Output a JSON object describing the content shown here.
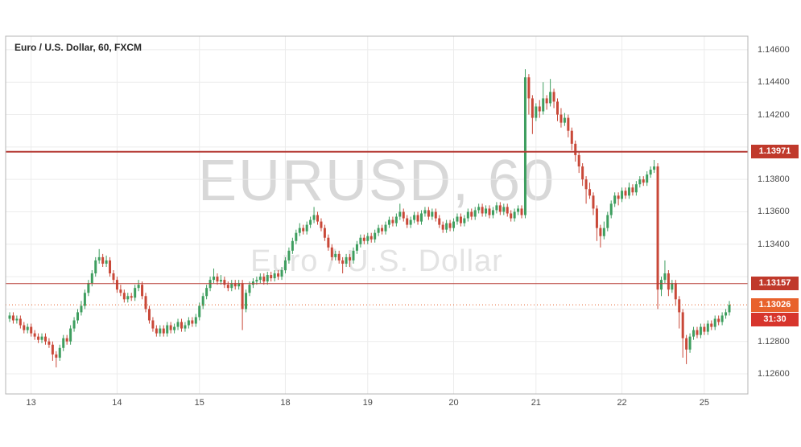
{
  "header": {
    "title": "Euro / U.S. Dollar, 60, FXCM"
  },
  "watermark": {
    "symbol_text": "EURUSD, 60",
    "name_text": "Euro / U.S. Dollar"
  },
  "colors": {
    "candle_up": "#3e9e5f",
    "candle_down": "#c94838",
    "grid": "#ececec",
    "plot_border": "#b5b5b5",
    "axis_text": "#4a4a4a",
    "level_line": "#b53a34",
    "level_label_bg": "#c0392b",
    "last_price": "#e8622c",
    "countdown_bg": "#d7352c"
  },
  "chart_data": {
    "type": "candlestick",
    "symbol": "EURUSD",
    "description": "Euro / U.S. Dollar",
    "interval": "60",
    "exchange": "FXCM",
    "x_axis": {
      "ticks": [
        {
          "label": "13",
          "index": 6
        },
        {
          "label": "14",
          "index": 30
        },
        {
          "label": "15",
          "index": 53
        },
        {
          "label": "18",
          "index": 77
        },
        {
          "label": "19",
          "index": 100
        },
        {
          "label": "20",
          "index": 124
        },
        {
          "label": "21",
          "index": 147
        },
        {
          "label": "22",
          "index": 171
        },
        {
          "label": "25",
          "index": 194
        }
      ]
    },
    "y_axis": {
      "range": [
        1.12476,
        1.14684
      ],
      "grid_prices": [
        1.146,
        1.144,
        1.142,
        1.14,
        1.138,
        1.136,
        1.134,
        1.132,
        1.13,
        1.128,
        1.126
      ],
      "visible_ticks": [
        "1.14600",
        "1.14400",
        "1.14200",
        "1.13800",
        "1.13600",
        "1.13400",
        "1.12800",
        "1.12600"
      ]
    },
    "levels": [
      {
        "price": 1.13971,
        "label": "1.13971"
      },
      {
        "price": 1.13157,
        "label": "1.13157"
      }
    ],
    "last_price": {
      "price": 1.13026,
      "label": "1.13026",
      "countdown": "31:30"
    },
    "ohlc_order": [
      "open",
      "high",
      "low",
      "close"
    ],
    "candles": [
      [
        1.1294,
        1.1298,
        1.1292,
        1.1296
      ],
      [
        1.1296,
        1.1298,
        1.1291,
        1.1293
      ],
      [
        1.1293,
        1.1296,
        1.1291,
        1.1294
      ],
      [
        1.1294,
        1.1296,
        1.1288,
        1.129
      ],
      [
        1.129,
        1.1292,
        1.1285,
        1.1287
      ],
      [
        1.1287,
        1.1291,
        1.1285,
        1.1289
      ],
      [
        1.1289,
        1.1291,
        1.1283,
        1.1285
      ],
      [
        1.1285,
        1.1287,
        1.1281,
        1.1283
      ],
      [
        1.1283,
        1.1285,
        1.1279,
        1.1281
      ],
      [
        1.1281,
        1.1285,
        1.1279,
        1.1283
      ],
      [
        1.1283,
        1.1285,
        1.1278,
        1.128
      ],
      [
        1.128,
        1.1282,
        1.1276,
        1.1278
      ],
      [
        1.1278,
        1.128,
        1.1268,
        1.1272
      ],
      [
        1.1272,
        1.1274,
        1.1264,
        1.127
      ],
      [
        1.127,
        1.1278,
        1.1268,
        1.1276
      ],
      [
        1.1276,
        1.1284,
        1.1274,
        1.1282
      ],
      [
        1.1282,
        1.1284,
        1.1278,
        1.128
      ],
      [
        1.128,
        1.129,
        1.1278,
        1.1288
      ],
      [
        1.1288,
        1.1295,
        1.1286,
        1.1293
      ],
      [
        1.1293,
        1.13,
        1.1291,
        1.1298
      ],
      [
        1.1298,
        1.1305,
        1.1296,
        1.1302
      ],
      [
        1.1302,
        1.1312,
        1.13,
        1.131
      ],
      [
        1.131,
        1.1318,
        1.1308,
        1.1316
      ],
      [
        1.1316,
        1.1324,
        1.1314,
        1.1322
      ],
      [
        1.1322,
        1.1332,
        1.132,
        1.133
      ],
      [
        1.133,
        1.1337,
        1.1328,
        1.1332
      ],
      [
        1.1332,
        1.1334,
        1.1326,
        1.1328
      ],
      [
        1.1328,
        1.1333,
        1.1326,
        1.133
      ],
      [
        1.133,
        1.1332,
        1.132,
        1.1322
      ],
      [
        1.1322,
        1.1324,
        1.1316,
        1.1318
      ],
      [
        1.1318,
        1.132,
        1.131,
        1.1312
      ],
      [
        1.1312,
        1.1315,
        1.1308,
        1.131
      ],
      [
        1.131,
        1.1312,
        1.1304,
        1.1306
      ],
      [
        1.1306,
        1.131,
        1.1304,
        1.1308
      ],
      [
        1.1308,
        1.131,
        1.1305,
        1.1307
      ],
      [
        1.1307,
        1.1315,
        1.1305,
        1.1313
      ],
      [
        1.1313,
        1.1318,
        1.1311,
        1.1315
      ],
      [
        1.1315,
        1.1317,
        1.1306,
        1.1308
      ],
      [
        1.1308,
        1.131,
        1.1298,
        1.13
      ],
      [
        1.13,
        1.1302,
        1.1291,
        1.1293
      ],
      [
        1.1293,
        1.1295,
        1.1286,
        1.1288
      ],
      [
        1.1288,
        1.129,
        1.1283,
        1.1285
      ],
      [
        1.1285,
        1.129,
        1.1283,
        1.1288
      ],
      [
        1.1288,
        1.129,
        1.1283,
        1.1285
      ],
      [
        1.1285,
        1.1292,
        1.1283,
        1.129
      ],
      [
        1.129,
        1.1292,
        1.1285,
        1.1287
      ],
      [
        1.1287,
        1.1291,
        1.1285,
        1.1289
      ],
      [
        1.1289,
        1.1294,
        1.1287,
        1.1292
      ],
      [
        1.1292,
        1.1294,
        1.1286,
        1.1288
      ],
      [
        1.1288,
        1.1292,
        1.1286,
        1.129
      ],
      [
        1.129,
        1.1295,
        1.1288,
        1.1293
      ],
      [
        1.1293,
        1.1295,
        1.1289,
        1.1291
      ],
      [
        1.1291,
        1.1297,
        1.1289,
        1.1295
      ],
      [
        1.1295,
        1.1304,
        1.1293,
        1.1302
      ],
      [
        1.1302,
        1.131,
        1.13,
        1.1308
      ],
      [
        1.1308,
        1.1315,
        1.1306,
        1.1313
      ],
      [
        1.1313,
        1.132,
        1.1311,
        1.1318
      ],
      [
        1.1318,
        1.1325,
        1.1316,
        1.132
      ],
      [
        1.132,
        1.1322,
        1.1315,
        1.1317
      ],
      [
        1.1317,
        1.1321,
        1.1315,
        1.1318
      ],
      [
        1.1318,
        1.132,
        1.1313,
        1.1315
      ],
      [
        1.1315,
        1.1317,
        1.1311,
        1.1313
      ],
      [
        1.1313,
        1.1318,
        1.1311,
        1.1316
      ],
      [
        1.1316,
        1.1318,
        1.1312,
        1.1314
      ],
      [
        1.1314,
        1.1318,
        1.1312,
        1.1316
      ],
      [
        1.1316,
        1.1318,
        1.1287,
        1.13
      ],
      [
        1.13,
        1.1312,
        1.1298,
        1.131
      ],
      [
        1.131,
        1.1317,
        1.1308,
        1.1315
      ],
      [
        1.1315,
        1.1319,
        1.1313,
        1.1317
      ],
      [
        1.1317,
        1.132,
        1.1315,
        1.1318
      ],
      [
        1.1318,
        1.1322,
        1.1316,
        1.132
      ],
      [
        1.132,
        1.1322,
        1.1315,
        1.1317
      ],
      [
        1.1317,
        1.1323,
        1.1315,
        1.1321
      ],
      [
        1.1321,
        1.1323,
        1.1317,
        1.1319
      ],
      [
        1.1319,
        1.1324,
        1.1317,
        1.1322
      ],
      [
        1.1322,
        1.1324,
        1.1318,
        1.132
      ],
      [
        1.132,
        1.1326,
        1.1318,
        1.1324
      ],
      [
        1.1324,
        1.1332,
        1.1322,
        1.133
      ],
      [
        1.133,
        1.1338,
        1.1328,
        1.1336
      ],
      [
        1.1336,
        1.1344,
        1.1334,
        1.1342
      ],
      [
        1.1342,
        1.1349,
        1.134,
        1.1347
      ],
      [
        1.1347,
        1.1353,
        1.1345,
        1.135
      ],
      [
        1.135,
        1.1352,
        1.1346,
        1.1348
      ],
      [
        1.1348,
        1.1354,
        1.1346,
        1.1352
      ],
      [
        1.1352,
        1.1357,
        1.135,
        1.1355
      ],
      [
        1.1355,
        1.1363,
        1.1353,
        1.1358
      ],
      [
        1.1358,
        1.136,
        1.1352,
        1.1354
      ],
      [
        1.1354,
        1.1356,
        1.1348,
        1.135
      ],
      [
        1.135,
        1.1352,
        1.1342,
        1.1344
      ],
      [
        1.1344,
        1.1346,
        1.1336,
        1.1338
      ],
      [
        1.1338,
        1.134,
        1.133,
        1.1332
      ],
      [
        1.1332,
        1.1336,
        1.133,
        1.1334
      ],
      [
        1.1334,
        1.1336,
        1.1328,
        1.133
      ],
      [
        1.133,
        1.1332,
        1.1322,
        1.1328
      ],
      [
        1.1328,
        1.1334,
        1.1326,
        1.1332
      ],
      [
        1.1332,
        1.1334,
        1.1326,
        1.133
      ],
      [
        1.133,
        1.1338,
        1.1328,
        1.1336
      ],
      [
        1.1336,
        1.1342,
        1.1334,
        1.134
      ],
      [
        1.134,
        1.1346,
        1.1338,
        1.1344
      ],
      [
        1.1344,
        1.1346,
        1.134,
        1.1342
      ],
      [
        1.1342,
        1.1347,
        1.134,
        1.1345
      ],
      [
        1.1345,
        1.1347,
        1.1341,
        1.1343
      ],
      [
        1.1343,
        1.1349,
        1.1341,
        1.1347
      ],
      [
        1.1347,
        1.1352,
        1.1345,
        1.135
      ],
      [
        1.135,
        1.1352,
        1.1346,
        1.1348
      ],
      [
        1.1348,
        1.1354,
        1.1346,
        1.1352
      ],
      [
        1.1352,
        1.1357,
        1.135,
        1.1355
      ],
      [
        1.1355,
        1.1357,
        1.1351,
        1.1353
      ],
      [
        1.1353,
        1.1359,
        1.1351,
        1.1357
      ],
      [
        1.1357,
        1.1365,
        1.1355,
        1.136
      ],
      [
        1.136,
        1.1362,
        1.1354,
        1.1356
      ],
      [
        1.1356,
        1.1358,
        1.135,
        1.1352
      ],
      [
        1.1352,
        1.1357,
        1.135,
        1.1355
      ],
      [
        1.1355,
        1.136,
        1.1353,
        1.1358
      ],
      [
        1.1358,
        1.136,
        1.1352,
        1.1354
      ],
      [
        1.1354,
        1.1361,
        1.1352,
        1.1359
      ],
      [
        1.1359,
        1.1363,
        1.1357,
        1.1361
      ],
      [
        1.1361,
        1.1363,
        1.1355,
        1.1357
      ],
      [
        1.1357,
        1.1362,
        1.1355,
        1.136
      ],
      [
        1.136,
        1.1362,
        1.1354,
        1.1356
      ],
      [
        1.1356,
        1.1358,
        1.135,
        1.1352
      ],
      [
        1.1352,
        1.1354,
        1.1347,
        1.1349
      ],
      [
        1.1349,
        1.1355,
        1.1347,
        1.1353
      ],
      [
        1.1353,
        1.1355,
        1.1348,
        1.135
      ],
      [
        1.135,
        1.1356,
        1.1348,
        1.1354
      ],
      [
        1.1354,
        1.1359,
        1.1352,
        1.1357
      ],
      [
        1.1357,
        1.1359,
        1.1351,
        1.1353
      ],
      [
        1.1353,
        1.1358,
        1.1351,
        1.1356
      ],
      [
        1.1356,
        1.1362,
        1.1354,
        1.136
      ],
      [
        1.136,
        1.1362,
        1.1355,
        1.1357
      ],
      [
        1.1357,
        1.1363,
        1.1355,
        1.1361
      ],
      [
        1.1361,
        1.1365,
        1.1359,
        1.1363
      ],
      [
        1.1363,
        1.1365,
        1.1357,
        1.1359
      ],
      [
        1.1359,
        1.1364,
        1.1357,
        1.1362
      ],
      [
        1.1362,
        1.1364,
        1.1356,
        1.1358
      ],
      [
        1.1358,
        1.1363,
        1.1356,
        1.1361
      ],
      [
        1.1361,
        1.1366,
        1.1359,
        1.1364
      ],
      [
        1.1364,
        1.1366,
        1.1358,
        1.136
      ],
      [
        1.136,
        1.1365,
        1.1358,
        1.1363
      ],
      [
        1.1363,
        1.1365,
        1.1357,
        1.1359
      ],
      [
        1.1359,
        1.1361,
        1.1354,
        1.1356
      ],
      [
        1.1356,
        1.1362,
        1.1354,
        1.136
      ],
      [
        1.136,
        1.1364,
        1.1358,
        1.1362
      ],
      [
        1.1362,
        1.1364,
        1.1356,
        1.1358
      ],
      [
        1.1358,
        1.1448,
        1.1356,
        1.1443
      ],
      [
        1.1443,
        1.1445,
        1.142,
        1.143
      ],
      [
        1.143,
        1.1432,
        1.1408,
        1.1418
      ],
      [
        1.1418,
        1.1427,
        1.1416,
        1.1425
      ],
      [
        1.1425,
        1.1429,
        1.1418,
        1.1422
      ],
      [
        1.1422,
        1.144,
        1.142,
        1.143
      ],
      [
        1.143,
        1.1432,
        1.1423,
        1.1427
      ],
      [
        1.1427,
        1.1442,
        1.1425,
        1.1434
      ],
      [
        1.1434,
        1.1436,
        1.1424,
        1.1428
      ],
      [
        1.1428,
        1.143,
        1.1416,
        1.142
      ],
      [
        1.142,
        1.1424,
        1.1412,
        1.1415
      ],
      [
        1.1415,
        1.1421,
        1.1413,
        1.1418
      ],
      [
        1.1418,
        1.142,
        1.1406,
        1.141
      ],
      [
        1.141,
        1.1412,
        1.1398,
        1.1402
      ],
      [
        1.1402,
        1.1404,
        1.1391,
        1.1395
      ],
      [
        1.1395,
        1.1397,
        1.1384,
        1.1388
      ],
      [
        1.1388,
        1.139,
        1.1376,
        1.138
      ],
      [
        1.138,
        1.1382,
        1.1365,
        1.1374
      ],
      [
        1.1374,
        1.1378,
        1.1368,
        1.137
      ],
      [
        1.137,
        1.1372,
        1.1358,
        1.1362
      ],
      [
        1.1362,
        1.1364,
        1.1342,
        1.135
      ],
      [
        1.135,
        1.1352,
        1.1338,
        1.1345
      ],
      [
        1.1345,
        1.1354,
        1.1343,
        1.135
      ],
      [
        1.135,
        1.136,
        1.1348,
        1.1358
      ],
      [
        1.1358,
        1.1367,
        1.1356,
        1.1365
      ],
      [
        1.1365,
        1.1372,
        1.1363,
        1.137
      ],
      [
        1.137,
        1.1372,
        1.1364,
        1.1368
      ],
      [
        1.1368,
        1.1375,
        1.1366,
        1.1373
      ],
      [
        1.1373,
        1.1375,
        1.1368,
        1.137
      ],
      [
        1.137,
        1.1378,
        1.1368,
        1.1375
      ],
      [
        1.1375,
        1.1377,
        1.137,
        1.1372
      ],
      [
        1.1372,
        1.1379,
        1.137,
        1.1377
      ],
      [
        1.1377,
        1.1382,
        1.1375,
        1.138
      ],
      [
        1.138,
        1.1382,
        1.1376,
        1.1378
      ],
      [
        1.1378,
        1.1385,
        1.1376,
        1.1383
      ],
      [
        1.1383,
        1.1388,
        1.1381,
        1.1386
      ],
      [
        1.1386,
        1.1392,
        1.1384,
        1.1388
      ],
      [
        1.1388,
        1.139,
        1.13,
        1.1312
      ],
      [
        1.1312,
        1.132,
        1.1308,
        1.1318
      ],
      [
        1.1318,
        1.133,
        1.1316,
        1.1322
      ],
      [
        1.1322,
        1.1324,
        1.1308,
        1.1312
      ],
      [
        1.1312,
        1.1318,
        1.131,
        1.1316
      ],
      [
        1.1316,
        1.1318,
        1.1302,
        1.1306
      ],
      [
        1.1306,
        1.1308,
        1.1288,
        1.1298
      ],
      [
        1.1298,
        1.13,
        1.127,
        1.1282
      ],
      [
        1.1282,
        1.1284,
        1.1266,
        1.1275
      ],
      [
        1.1275,
        1.1285,
        1.1273,
        1.1283
      ],
      [
        1.1283,
        1.1289,
        1.1281,
        1.1287
      ],
      [
        1.1287,
        1.1289,
        1.1282,
        1.1284
      ],
      [
        1.1284,
        1.1291,
        1.1282,
        1.1289
      ],
      [
        1.1289,
        1.1291,
        1.1284,
        1.1286
      ],
      [
        1.1286,
        1.1293,
        1.1284,
        1.1291
      ],
      [
        1.1291,
        1.1293,
        1.1287,
        1.1289
      ],
      [
        1.1289,
        1.1296,
        1.1287,
        1.1294
      ],
      [
        1.1294,
        1.1296,
        1.129,
        1.1292
      ],
      [
        1.1292,
        1.1298,
        1.129,
        1.1296
      ],
      [
        1.1296,
        1.13,
        1.1294,
        1.1298
      ],
      [
        1.1298,
        1.1305,
        1.1296,
        1.13026
      ]
    ]
  }
}
